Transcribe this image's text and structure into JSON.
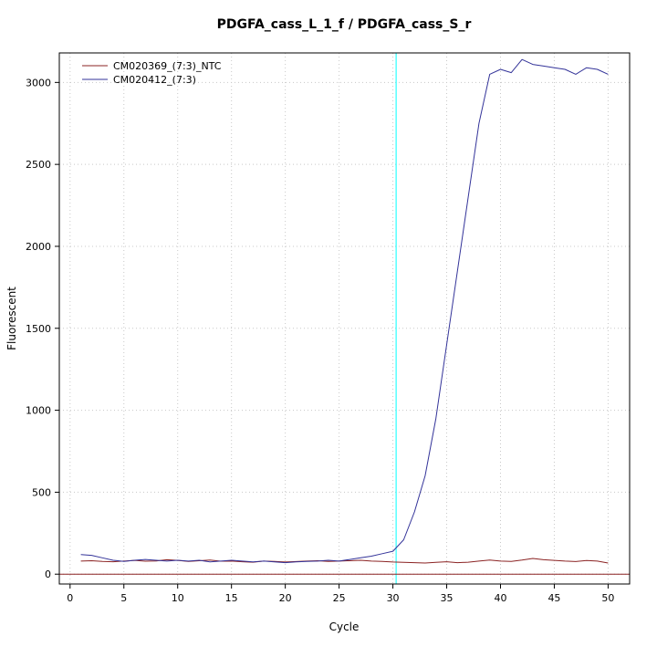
{
  "page": {
    "background": "#ffffff"
  },
  "chart_data": {
    "type": "line",
    "title": "PDGFA_cass_L_1_f / PDGFA_cass_S_r",
    "xlabel": "Cycle",
    "ylabel": "Fluorescent",
    "x": [
      1,
      2,
      3,
      4,
      5,
      6,
      7,
      8,
      9,
      10,
      11,
      12,
      13,
      14,
      15,
      16,
      17,
      18,
      19,
      20,
      21,
      22,
      23,
      24,
      25,
      26,
      27,
      28,
      29,
      30,
      31,
      32,
      33,
      34,
      35,
      36,
      37,
      38,
      39,
      40,
      41,
      42,
      43,
      44,
      45,
      46,
      47,
      48,
      49,
      50
    ],
    "series": [
      {
        "name": "CM020369_(7:3)_NTC",
        "color": "#8B2323",
        "values": [
          80,
          82,
          78,
          76,
          80,
          84,
          79,
          81,
          88,
          84,
          78,
          82,
          86,
          79,
          80,
          76,
          73,
          80,
          78,
          74,
          77,
          80,
          82,
          78,
          80,
          82,
          85,
          80,
          78,
          74,
          72,
          70,
          68,
          72,
          76,
          70,
          73,
          80,
          86,
          80,
          78,
          86,
          96,
          88,
          84,
          80,
          77,
          83,
          80,
          68
        ]
      },
      {
        "name": "CM020412_(7:3)",
        "color": "#333399",
        "values": [
          120,
          115,
          100,
          85,
          78,
          85,
          90,
          85,
          80,
          85,
          80,
          85,
          75,
          80,
          85,
          80,
          75,
          80,
          75,
          70,
          75,
          78,
          80,
          85,
          80,
          90,
          100,
          110,
          125,
          140,
          210,
          380,
          600,
          950,
          1400,
          1850,
          2300,
          2750,
          3050,
          3080,
          3060,
          3140,
          3110,
          3100,
          3090,
          3080,
          3050,
          3090,
          3080,
          3050
        ]
      }
    ],
    "xticks": [
      0,
      5,
      10,
      15,
      20,
      25,
      30,
      35,
      40,
      45,
      50
    ],
    "yticks": [
      0,
      500,
      1000,
      1500,
      2000,
      2500,
      3000
    ],
    "xlim": [
      -1,
      52
    ],
    "ylim": [
      -60,
      3180
    ],
    "threshold_line": {
      "x": 30.3,
      "color": "#00FFFF"
    },
    "baseline": {
      "y": 0,
      "color": "#8B2323"
    },
    "grid": {
      "color": "#C8C8C8",
      "style": "dotted"
    },
    "legend_position": "top-left",
    "axis_color": "#000000"
  }
}
